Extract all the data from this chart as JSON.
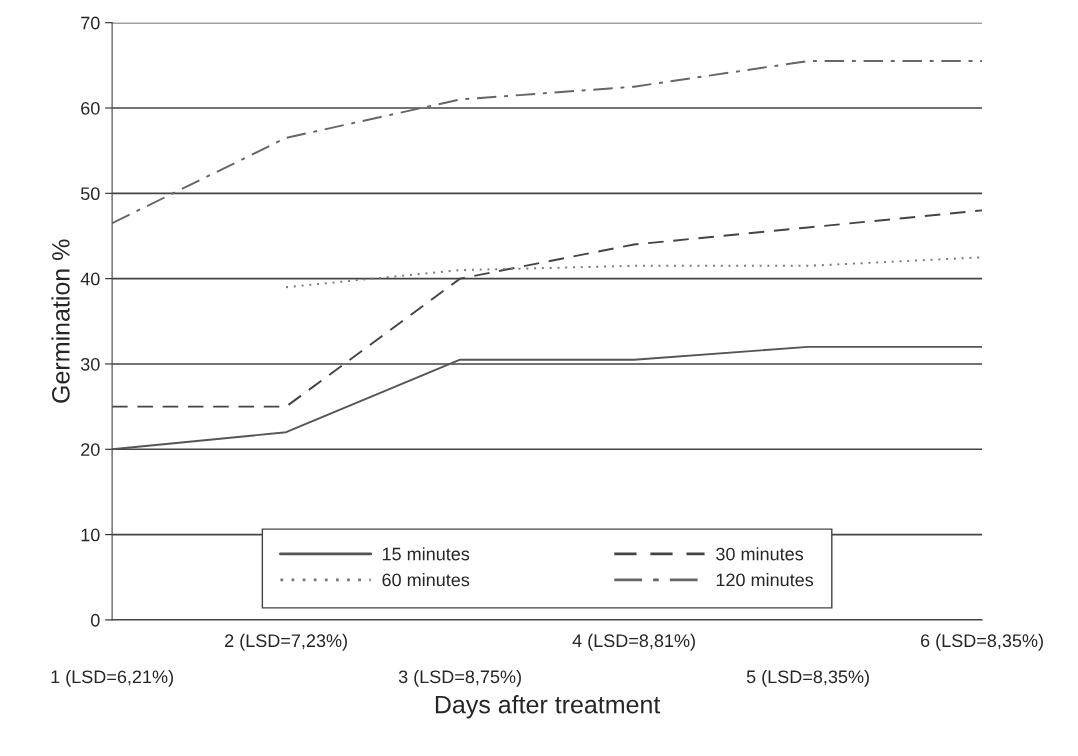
{
  "chart_data": {
    "type": "line",
    "xlabel": "Days after treatment",
    "ylabel": "Germination %",
    "categories": [
      "1 (LSD=6,21%)",
      "2 (LSD=7,23%)",
      "3 (LSD=8,75%)",
      "4 (LSD=8,81%)",
      "5 (LSD=8,35%)",
      "6 (LSD=8,35%)"
    ],
    "series": [
      {
        "name": "15 minutes",
        "color": "#555555",
        "line_style": "solid",
        "values": [
          20,
          22,
          30.5,
          30.5,
          32,
          32
        ]
      },
      {
        "name": "30 minutes",
        "color": "#444444",
        "line_style": "dashed",
        "values": [
          25,
          25,
          40,
          44,
          46,
          48
        ]
      },
      {
        "name": "60 minutes",
        "color": "#777777",
        "line_style": "dotted",
        "values": [
          null,
          39,
          41,
          41.5,
          41.5,
          42.5
        ]
      },
      {
        "name": "120 minutes",
        "color": "#666666",
        "line_style": "dashdot",
        "values": [
          46.5,
          56.5,
          61,
          62.5,
          65.5,
          65.5
        ]
      }
    ],
    "ylim": [
      0,
      70
    ],
    "yticks": [
      0,
      10,
      20,
      30,
      40,
      50,
      60,
      70
    ],
    "grid": "y",
    "legend": "bottom"
  }
}
